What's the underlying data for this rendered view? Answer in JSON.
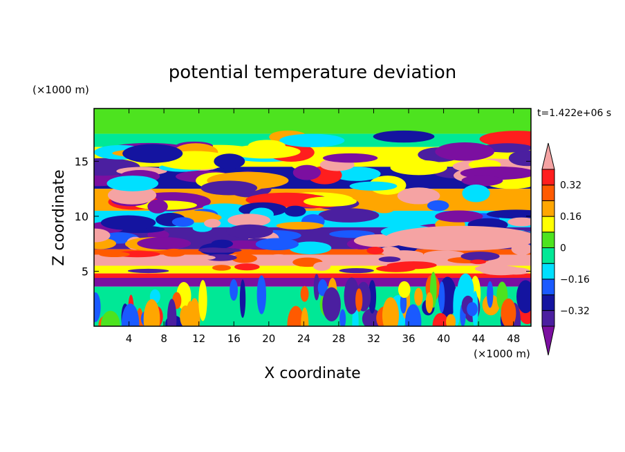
{
  "chart_data": {
    "type": "heatmap",
    "title": "potential temperature deviation",
    "xlabel": "X coordinate",
    "ylabel": "Z coordinate",
    "x_unit_label": "(×1000 m)",
    "y_unit_label": "(×1000 m)",
    "time_label": "t=1.422e+06 s",
    "xlim": [
      0,
      50
    ],
    "ylim": [
      0,
      19.8
    ],
    "x_ticks": [
      4,
      8,
      12,
      16,
      20,
      24,
      28,
      32,
      36,
      40,
      44,
      48
    ],
    "y_ticks": [
      5,
      10,
      15
    ],
    "colorbar": {
      "levels": [
        -0.4,
        -0.32,
        -0.24,
        -0.16,
        -0.08,
        0,
        0.08,
        0.16,
        0.24,
        0.32,
        0.4
      ],
      "tick_labels": [
        "0.32",
        "0.16",
        "0",
        "−0.16",
        "−0.32"
      ],
      "tick_values": [
        0.32,
        0.16,
        0,
        -0.16,
        -0.32
      ],
      "colors": [
        "#7b0fa0",
        "#4b1fa0",
        "#1414a0",
        "#1a5aff",
        "#00e0ff",
        "#00e896",
        "#4de31f",
        "#ffff00",
        "#ffa600",
        "#ff5a00",
        "#ff1e1e",
        "#f5a3a3"
      ],
      "extend": "both"
    },
    "bands": [
      {
        "z": [
          17.5,
          19.8
        ],
        "level": 6
      },
      {
        "z": [
          16.3,
          17.5
        ],
        "level": 5
      },
      {
        "z": [
          14.5,
          16.3
        ],
        "level": 7
      },
      {
        "z": [
          12.5,
          14.5
        ],
        "level": 2
      },
      {
        "z": [
          10.5,
          12.5
        ],
        "level": 8
      },
      {
        "z": [
          9.0,
          10.5
        ],
        "level": 4
      },
      {
        "z": [
          7.0,
          9.0
        ],
        "level": 1
      },
      {
        "z": [
          6.5,
          7.0
        ],
        "level": 9
      },
      {
        "z": [
          5.5,
          6.5
        ],
        "level": 11
      },
      {
        "z": [
          4.8,
          5.5
        ],
        "level": 7
      },
      {
        "z": [
          4.4,
          4.8
        ],
        "level": 10
      },
      {
        "z": [
          3.6,
          4.4
        ],
        "level": 0
      },
      {
        "z": [
          0,
          3.6
        ],
        "level": 5
      }
    ]
  }
}
